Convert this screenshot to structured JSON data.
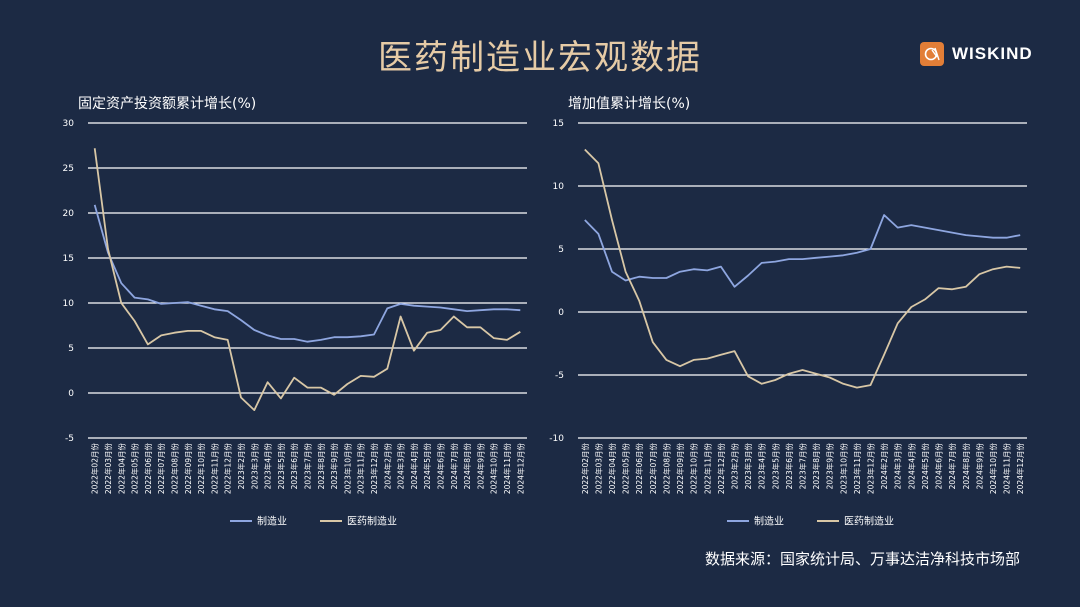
{
  "header": {
    "title": "医药制造业宏观数据"
  },
  "logo": {
    "text": "WISKIND"
  },
  "footer": {
    "source": "数据来源：国家统计局、万事达洁净科技市场部"
  },
  "colors": {
    "manufacturing": "#8ea6e0",
    "pharma": "#d8c7a6",
    "grid": "#ffffff",
    "background": "#1c2a44"
  },
  "chart_data": [
    {
      "type": "line",
      "title": "固定资产投资额累计增长(%)",
      "ylim": [
        -5,
        30
      ],
      "yticks": [
        -5,
        0,
        5,
        10,
        15,
        20,
        25,
        30
      ],
      "grid": true,
      "legend_position": "bottom",
      "categories": [
        "2022年02月份",
        "2022年03月份",
        "2022年04月份",
        "2022年05月份",
        "2022年06月份",
        "2022年07月份",
        "2022年08月份",
        "2022年09月份",
        "2022年10月份",
        "2022年11月份",
        "2022年12月份",
        "2023年2月份",
        "2023年3月份",
        "2023年4月份",
        "2023年5月份",
        "2023年6月份",
        "2023年7月份",
        "2023年8月份",
        "2023年9月份",
        "2023年10月份",
        "2023年11月份",
        "2023年12月份",
        "2024年2月份",
        "2024年3月份",
        "2024年4月份",
        "2024年5月份",
        "2024年6月份",
        "2024年7月份",
        "2024年8月份",
        "2024年9月份",
        "2024年10月份",
        "2024年11月份",
        "2024年12月份"
      ],
      "series": [
        {
          "name": "制造业",
          "values": [
            20.9,
            15.6,
            12.2,
            10.6,
            10.4,
            9.9,
            10.0,
            10.1,
            9.7,
            9.3,
            9.1,
            8.1,
            7.0,
            6.4,
            6.0,
            6.0,
            5.7,
            5.9,
            6.2,
            6.2,
            6.3,
            6.5,
            9.4,
            9.9,
            9.7,
            9.6,
            9.5,
            9.3,
            9.1,
            9.2,
            9.3,
            9.3,
            9.2
          ]
        },
        {
          "name": "医药制造业",
          "values": [
            27.2,
            16.0,
            10.0,
            8.0,
            5.4,
            6.4,
            6.7,
            6.9,
            6.9,
            6.2,
            5.9,
            -0.5,
            -1.9,
            1.2,
            -0.6,
            1.7,
            0.6,
            0.6,
            -0.2,
            1.0,
            1.9,
            1.8,
            2.7,
            8.5,
            4.7,
            6.7,
            7.0,
            8.5,
            7.3,
            7.3,
            6.1,
            5.9,
            6.8
          ]
        }
      ]
    },
    {
      "type": "line",
      "title": "增加值累计增长(%)",
      "ylim": [
        -10,
        15
      ],
      "yticks": [
        -10,
        -5,
        0,
        5,
        10,
        15
      ],
      "grid": true,
      "legend_position": "bottom",
      "categories": [
        "2022年02月份",
        "2022年03月份",
        "2022年04月份",
        "2022年05月份",
        "2022年06月份",
        "2022年07月份",
        "2022年08月份",
        "2022年09月份",
        "2022年10月份",
        "2022年11月份",
        "2022年12月份",
        "2023年2月份",
        "2023年3月份",
        "2023年4月份",
        "2023年5月份",
        "2023年6月份",
        "2023年7月份",
        "2023年8月份",
        "2023年9月份",
        "2023年10月份",
        "2023年11月份",
        "2023年12月份",
        "2024年2月份",
        "2024年3月份",
        "2024年4月份",
        "2024年5月份",
        "2024年6月份",
        "2024年7月份",
        "2024年8月份",
        "2024年9月份",
        "2024年10月份",
        "2024年11月份",
        "2024年12月份"
      ],
      "series": [
        {
          "name": "制造业",
          "values": [
            7.3,
            6.2,
            3.2,
            2.5,
            2.8,
            2.7,
            2.7,
            3.2,
            3.4,
            3.3,
            3.6,
            2.0,
            2.9,
            3.9,
            4.0,
            4.2,
            4.2,
            4.3,
            4.4,
            4.5,
            4.7,
            5.0,
            7.7,
            6.7,
            6.9,
            6.7,
            6.5,
            6.3,
            6.1,
            6.0,
            5.9,
            5.9,
            6.1
          ]
        },
        {
          "name": "医药制造业",
          "values": [
            12.9,
            11.8,
            7.3,
            3.2,
            0.9,
            -2.4,
            -3.8,
            -4.3,
            -3.8,
            -3.7,
            -3.4,
            -3.1,
            -5.1,
            -5.7,
            -5.4,
            -4.9,
            -4.6,
            -4.9,
            -5.2,
            -5.7,
            -6.0,
            -5.8,
            -3.4,
            -0.9,
            0.4,
            1.0,
            1.9,
            1.8,
            2.0,
            3.0,
            3.4,
            3.6,
            3.5
          ]
        }
      ]
    }
  ]
}
